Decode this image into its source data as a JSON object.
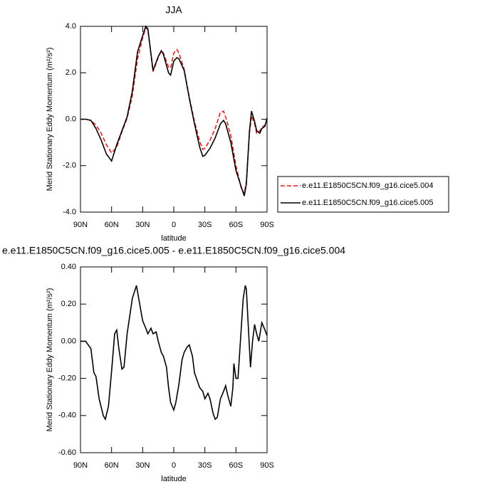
{
  "chart_data": [
    {
      "type": "line",
      "title": "JJA",
      "xlabel": "latitude",
      "ylabel": "Merid Stationary Eddy Momentum (m²/s²)",
      "x": [
        90,
        85,
        80,
        75,
        70,
        65,
        60,
        55,
        50,
        45,
        40,
        35,
        30,
        27,
        25,
        20,
        15,
        12,
        10,
        5,
        3,
        0,
        -3,
        -5,
        -10,
        -15,
        -20,
        -25,
        -28,
        -30,
        -35,
        -40,
        -45,
        -48,
        -50,
        -55,
        -60,
        -65,
        -68,
        -70,
        -73,
        -75,
        -78,
        -80,
        -83,
        -85,
        -88,
        -90
      ],
      "series": [
        {
          "name": "e.e11.E1850C5CN.f09_g16.cice5.004",
          "color": "#e41a1c",
          "dashed": true,
          "values": [
            0,
            0,
            -0.05,
            -0.25,
            -0.6,
            -1.1,
            -1.45,
            -1.2,
            -0.55,
            0.05,
            1.0,
            2.6,
            3.5,
            3.95,
            3.85,
            2.05,
            2.65,
            2.95,
            2.85,
            2.25,
            2.2,
            2.85,
            3.0,
            2.85,
            2.15,
            0.95,
            -0.1,
            -0.95,
            -1.3,
            -1.25,
            -0.9,
            -0.4,
            0.3,
            0.35,
            0.1,
            -0.7,
            -2.0,
            -2.95,
            -3.2,
            -2.7,
            -0.6,
            0.15,
            -0.2,
            -0.6,
            -0.5,
            -0.35,
            -0.25,
            0.05
          ]
        },
        {
          "name": "e.e11.E1850C5CN.f09_g16.cice5.005",
          "color": "#000000",
          "dashed": false,
          "values": [
            0,
            0,
            -0.05,
            -0.4,
            -0.9,
            -1.5,
            -1.8,
            -1.1,
            -0.5,
            0.1,
            1.2,
            2.9,
            3.6,
            4.0,
            3.9,
            2.1,
            2.7,
            2.95,
            2.8,
            2.0,
            1.9,
            2.5,
            2.65,
            2.6,
            2.1,
            0.9,
            -0.2,
            -1.2,
            -1.6,
            -1.55,
            -1.25,
            -0.8,
            -0.2,
            -0.05,
            -0.2,
            -1.0,
            -2.2,
            -2.9,
            -3.3,
            -2.8,
            -0.5,
            0.35,
            -0.1,
            -0.5,
            -0.6,
            -0.4,
            -0.3,
            0.05
          ]
        }
      ],
      "xlim": [
        90,
        -90
      ],
      "ylim": [
        -4,
        4
      ],
      "xticks": [
        {
          "value": 90,
          "label": "90N"
        },
        {
          "value": 60,
          "label": "60N"
        },
        {
          "value": 30,
          "label": "30N"
        },
        0,
        {
          "value": -30,
          "label": "30S"
        },
        {
          "value": -60,
          "label": "60S"
        },
        {
          "value": -90,
          "label": "90S"
        }
      ],
      "yticks": [
        {
          "value": -4,
          "label": "-4.0"
        },
        {
          "value": -2,
          "label": "-2.0"
        },
        {
          "value": 0,
          "label": "0.0"
        },
        {
          "value": 2,
          "label": "2.0"
        },
        {
          "value": 4,
          "label": "4.0"
        }
      ],
      "legend": "right"
    },
    {
      "type": "line",
      "title": "e.e11.E1850C5CN.f09_g16.cice5.005 - e.e11.E1850C5CN.f09_g16.cice5.004",
      "xlabel": "latitude",
      "ylabel": "Merid Stationary Eddy Momentum (m²/s²)",
      "x": [
        90,
        85,
        80,
        77,
        75,
        72,
        68,
        66,
        63,
        60,
        57,
        55,
        53,
        50,
        48,
        45,
        40,
        36,
        30,
        27,
        25,
        22,
        20,
        17,
        15,
        12,
        10,
        7,
        5,
        3,
        0,
        -2,
        -5,
        -8,
        -10,
        -13,
        -15,
        -18,
        -20,
        -25,
        -28,
        -30,
        -33,
        -35,
        -38,
        -40,
        -42,
        -45,
        -48,
        -50,
        -52,
        -55,
        -57,
        -58,
        -60,
        -62,
        -65,
        -67,
        -69,
        -70,
        -72,
        -74,
        -76,
        -78,
        -80,
        -82,
        -85,
        -88,
        -90
      ],
      "series": [
        {
          "color": "#000000",
          "dashed": false,
          "values": [
            0,
            0,
            -0.04,
            -0.17,
            -0.19,
            -0.31,
            -0.4,
            -0.42,
            -0.35,
            -0.16,
            0.04,
            0.06,
            -0.04,
            -0.15,
            -0.14,
            0.04,
            0.23,
            0.3,
            0.11,
            0.07,
            0.04,
            0.07,
            0.04,
            0.05,
            0.0,
            -0.06,
            -0.08,
            -0.14,
            -0.25,
            -0.33,
            -0.37,
            -0.33,
            -0.23,
            -0.1,
            -0.06,
            -0.03,
            -0.02,
            -0.08,
            -0.17,
            -0.25,
            -0.27,
            -0.31,
            -0.28,
            -0.31,
            -0.39,
            -0.42,
            -0.41,
            -0.31,
            -0.27,
            -0.24,
            -0.29,
            -0.35,
            -0.25,
            -0.12,
            -0.2,
            -0.2,
            0.06,
            0.23,
            0.3,
            0.28,
            0.07,
            -0.14,
            0.0,
            0.09,
            0.04,
            0.0,
            0.1,
            0.06,
            0.03
          ]
        }
      ],
      "xlim": [
        90,
        -90
      ],
      "ylim": [
        -0.6,
        0.4
      ],
      "xticks": [
        {
          "value": 90,
          "label": "90N"
        },
        {
          "value": 60,
          "label": "60N"
        },
        {
          "value": 30,
          "label": "30N"
        },
        0,
        {
          "value": -30,
          "label": "30S"
        },
        {
          "value": -60,
          "label": "60S"
        },
        {
          "value": -90,
          "label": "90S"
        }
      ],
      "yticks": [
        {
          "value": -0.6,
          "label": "-0.60"
        },
        {
          "value": -0.4,
          "label": "-0.40"
        },
        {
          "value": -0.2,
          "label": "-0.20"
        },
        {
          "value": 0,
          "label": "0.00"
        },
        {
          "value": 0.2,
          "label": "0.20"
        },
        {
          "value": 0.4,
          "label": "0.40"
        }
      ]
    }
  ]
}
